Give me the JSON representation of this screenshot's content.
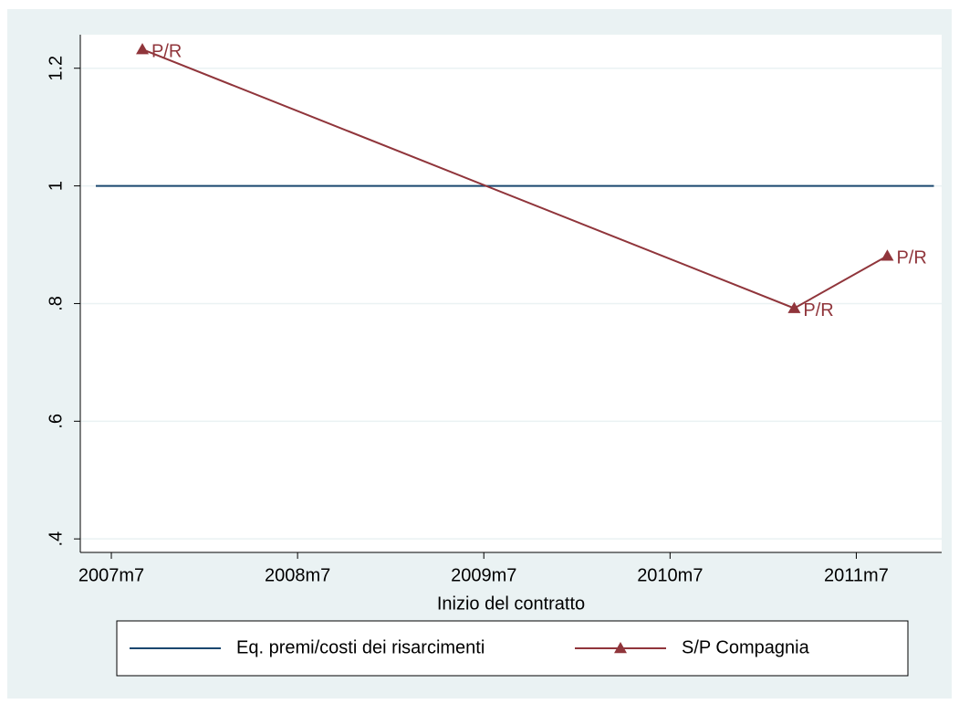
{
  "chart_data": {
    "type": "line",
    "x_label": "Inizio del contratto",
    "series": [
      {
        "name": "Eq. premi/costi dei risarcimenti",
        "color": "#1a476f",
        "x": [
          569,
          623
        ],
        "values": [
          1,
          1
        ]
      },
      {
        "name": "S/P Compagnia",
        "color": "#90353b",
        "marker": "triangle",
        "x": [
          572,
          614,
          620
        ],
        "values": [
          1.232,
          0.792,
          0.881
        ],
        "point_labels": [
          "P/R",
          "P/R",
          "P/R"
        ]
      }
    ],
    "xlim": [
      568,
      623.5
    ],
    "xticks": [
      {
        "value": 570,
        "label": "2007m7"
      },
      {
        "value": 582,
        "label": "2008m7"
      },
      {
        "value": 594,
        "label": "2009m7"
      },
      {
        "value": 606,
        "label": "2010m7"
      },
      {
        "value": 618,
        "label": "2011m7"
      }
    ],
    "ylim": [
      0.377,
      1.257
    ],
    "yticks": [
      {
        "value": 0.4,
        "label": ".4"
      },
      {
        "value": 0.6,
        "label": ".6"
      },
      {
        "value": 0.8,
        "label": ".8"
      },
      {
        "value": 1,
        "label": "1"
      },
      {
        "value": 1.2,
        "label": "1.2"
      }
    ],
    "grid": true
  }
}
